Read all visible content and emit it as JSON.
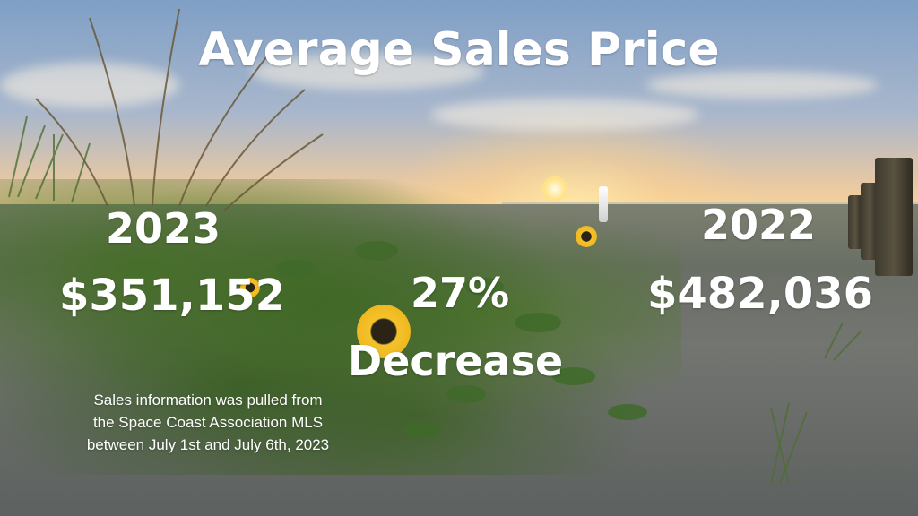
{
  "title": "Average Sales Price",
  "left": {
    "year": "2023",
    "price": "$351,152"
  },
  "center": {
    "percent": "27%",
    "change": "Decrease"
  },
  "right": {
    "year": "2022",
    "price": "$482,036"
  },
  "note": {
    "line1": "Sales information was pulled from",
    "line2": "the Space Coast Association MLS",
    "line3": "between July 1st and July 6th, 2023"
  }
}
